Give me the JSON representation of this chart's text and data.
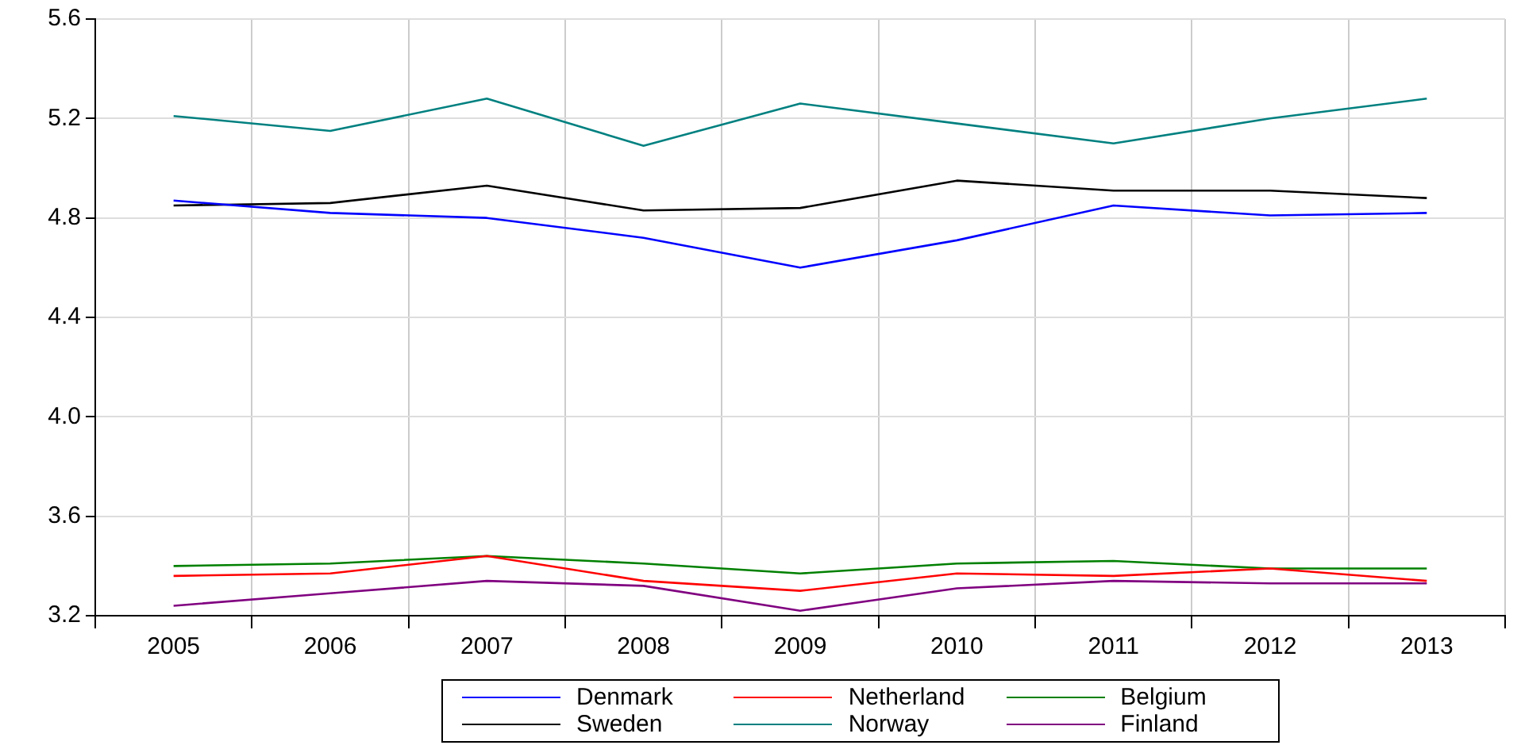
{
  "chart_data": {
    "type": "line",
    "categories": [
      "2005",
      "2006",
      "2007",
      "2008",
      "2009",
      "2010",
      "2011",
      "2012",
      "2013"
    ],
    "series": [
      {
        "name": "Denmark",
        "color": "#0000ff",
        "values": [
          4.87,
          4.82,
          4.8,
          4.72,
          4.6,
          4.71,
          4.85,
          4.81,
          4.82
        ]
      },
      {
        "name": "Netherland",
        "color": "#ff0000",
        "values": [
          3.36,
          3.37,
          3.44,
          3.34,
          3.3,
          3.37,
          3.36,
          3.39,
          3.34
        ]
      },
      {
        "name": "Belgium",
        "color": "#008000",
        "values": [
          3.4,
          3.41,
          3.44,
          3.41,
          3.37,
          3.41,
          3.42,
          3.39,
          3.39
        ]
      },
      {
        "name": "Sweden",
        "color": "#000000",
        "values": [
          4.85,
          4.86,
          4.93,
          4.83,
          4.84,
          4.95,
          4.91,
          4.91,
          4.88
        ]
      },
      {
        "name": "Norway",
        "color": "#008080",
        "values": [
          5.21,
          5.15,
          5.28,
          5.09,
          5.26,
          5.18,
          5.1,
          5.2,
          5.28
        ]
      },
      {
        "name": "Finland",
        "color": "#800080",
        "values": [
          3.24,
          3.29,
          3.34,
          3.32,
          3.22,
          3.31,
          3.34,
          3.33,
          3.33
        ]
      }
    ],
    "ylim": [
      3.2,
      5.6
    ],
    "yticks": [
      3.2,
      3.6,
      {
        "value": 4,
        "label": "4.0"
      },
      4.4,
      4.8,
      5.2,
      5.6
    ],
    "grid": true,
    "legend": "bottom",
    "marker": "none",
    "line_style": "solid"
  }
}
